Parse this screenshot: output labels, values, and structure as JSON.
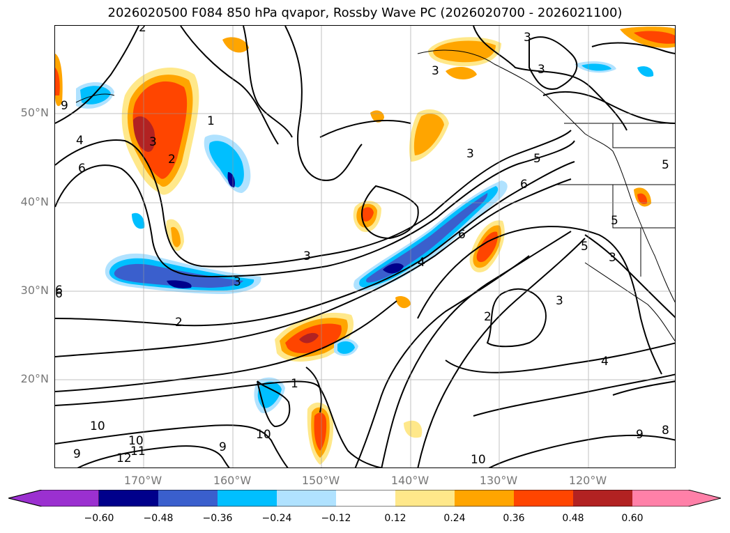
{
  "title": "2026020500 F084 850 hPa qvapor, Rossby Wave PC (2026020700 - 2026021100)",
  "lat_labels": [
    "50°N",
    "40°N",
    "30°N",
    "20°N"
  ],
  "lon_labels": [
    "170°W",
    "160°W",
    "150°W",
    "140°W",
    "130°W",
    "120°W"
  ],
  "colorbar": {
    "ticks": [
      "−0.60",
      "−0.48",
      "−0.36",
      "−0.24",
      "−0.12",
      "0.12",
      "0.24",
      "0.36",
      "0.48",
      "0.60"
    ],
    "colors": [
      "#9b30d0",
      "#00008b",
      "#3a5fcd",
      "#00bfff",
      "#b0e2ff",
      "#ffffff",
      "#ffe88a",
      "#ffa500",
      "#ff4500",
      "#b22222",
      "#ff80a8"
    ]
  },
  "contour_labels": [
    "2",
    "3",
    "5",
    "9",
    "3",
    "3",
    "1",
    "4",
    "6",
    "3",
    "2",
    "3",
    "5",
    "6",
    "3",
    "6",
    "5",
    "5",
    "3",
    "3",
    "4",
    "2",
    "6",
    "2",
    "3",
    "4",
    "1",
    "10",
    "10",
    "11",
    "12",
    "9",
    "10",
    "10",
    "9",
    "8",
    "9",
    "6"
  ]
}
